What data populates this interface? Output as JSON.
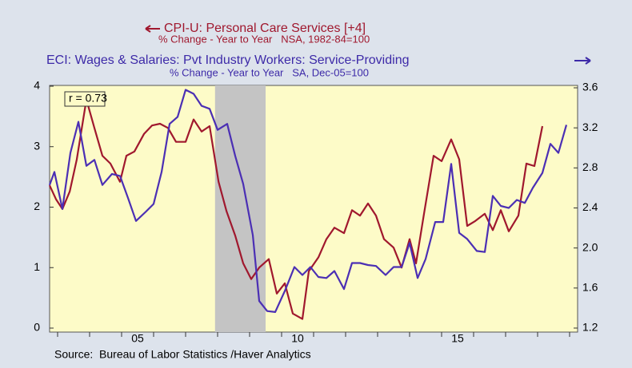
{
  "chart_data": {
    "type": "line",
    "annotation": "r = 0.73",
    "source": "Source:  Bureau of Labor Statistics /Haver Analytics",
    "xlim": [
      2002.75,
      2019.25
    ],
    "xticks": [
      {
        "value": 2005.5,
        "label": "05"
      },
      {
        "value": 2010.5,
        "label": "10"
      },
      {
        "value": 2015.5,
        "label": "15"
      }
    ],
    "xminor_ticks": [
      2003,
      2004,
      2005,
      2006,
      2007,
      2008,
      2009,
      2010,
      2011,
      2012,
      2013,
      2014,
      2015,
      2016,
      2017,
      2018,
      2019
    ],
    "recession": [
      2007.92,
      2009.5
    ],
    "ylim": [
      -0.066,
      4.013
    ],
    "yticks": [
      0,
      1,
      2,
      3,
      4
    ],
    "y2lim": [
      1.16,
      3.624
    ],
    "y2ticks": [
      1.2,
      1.6,
      {
        "value": 2,
        "label": "2.0"
      },
      2.4,
      2.8,
      3.2,
      3.6
    ],
    "series": [
      {
        "name": "CPI-U: Personal Care Services [+4]",
        "subtitle": "% Change - Year to Year   NSA, 1982-84=100",
        "color": "#a0182e",
        "axis": "y",
        "x": [
          2002.75,
          2002.95,
          2003.15,
          2003.38,
          2003.6,
          2003.9,
          2004.15,
          2004.4,
          2004.65,
          2004.95,
          2005.15,
          2005.4,
          2005.7,
          2005.95,
          2006.2,
          2006.45,
          2006.7,
          2007.0,
          2007.25,
          2007.5,
          2007.75,
          2008.03,
          2008.28,
          2008.55,
          2008.8,
          2009.05,
          2009.3,
          2009.6,
          2009.85,
          2010.1,
          2010.35,
          2010.65,
          2010.85,
          2011.15,
          2011.4,
          2011.65,
          2011.95,
          2012.2,
          2012.45,
          2012.7,
          2012.95,
          2013.2,
          2013.5,
          2013.75,
          2014.0,
          2014.2,
          2014.45,
          2014.75,
          2015.0,
          2015.3,
          2015.55,
          2015.8,
          2016.05,
          2016.35,
          2016.6,
          2016.85,
          2017.1,
          2017.4,
          2017.65,
          2017.9,
          2018.15
        ],
        "values": [
          2.36,
          2.13,
          1.97,
          2.26,
          2.79,
          3.78,
          3.31,
          2.85,
          2.72,
          2.42,
          2.85,
          2.92,
          3.21,
          3.35,
          3.38,
          3.31,
          3.08,
          3.08,
          3.45,
          3.25,
          3.34,
          2.42,
          1.93,
          1.53,
          1.07,
          0.81,
          1.0,
          1.14,
          0.57,
          0.74,
          0.24,
          0.15,
          0.94,
          1.17,
          1.47,
          1.66,
          1.57,
          1.95,
          1.86,
          2.06,
          1.86,
          1.47,
          1.33,
          1.0,
          1.47,
          1.07,
          1.89,
          2.85,
          2.76,
          3.12,
          2.79,
          1.69,
          1.77,
          1.89,
          1.62,
          1.95,
          1.6,
          1.86,
          2.72,
          2.68,
          3.34
        ]
      },
      {
        "name": "ECI: Wages & Salaries: Pvt Industry Workers: Service-Providing",
        "subtitle": "% Change - Year to Year   SA, Dec-05=100",
        "color": "#4b2fb4",
        "axis": "y2",
        "x": [
          2002.75,
          2002.9,
          2003.15,
          2003.4,
          2003.65,
          2003.9,
          2004.15,
          2004.4,
          2004.7,
          2004.95,
          2005.2,
          2005.45,
          2005.75,
          2006.0,
          2006.25,
          2006.5,
          2006.75,
          2007.0,
          2007.25,
          2007.5,
          2007.75,
          2008.0,
          2008.3,
          2008.55,
          2008.8,
          2009.1,
          2009.3,
          2009.55,
          2009.8,
          2010.1,
          2010.4,
          2010.65,
          2010.9,
          2011.15,
          2011.4,
          2011.65,
          2011.95,
          2012.2,
          2012.45,
          2012.7,
          2012.95,
          2013.25,
          2013.5,
          2013.75,
          2014.0,
          2014.25,
          2014.5,
          2014.8,
          2015.05,
          2015.3,
          2015.55,
          2015.8,
          2016.1,
          2016.35,
          2016.6,
          2016.85,
          2017.1,
          2017.35,
          2017.6,
          2017.85,
          2018.15,
          2018.4,
          2018.65,
          2018.9
        ],
        "values": [
          2.63,
          2.76,
          2.39,
          2.95,
          3.26,
          2.82,
          2.88,
          2.63,
          2.74,
          2.72,
          2.5,
          2.27,
          2.36,
          2.44,
          2.76,
          3.24,
          3.31,
          3.58,
          3.54,
          3.42,
          3.39,
          3.18,
          3.24,
          2.92,
          2.64,
          2.13,
          1.47,
          1.37,
          1.36,
          1.57,
          1.81,
          1.73,
          1.81,
          1.71,
          1.7,
          1.77,
          1.59,
          1.85,
          1.85,
          1.83,
          1.82,
          1.73,
          1.81,
          1.81,
          2.05,
          1.7,
          1.89,
          2.26,
          2.26,
          2.84,
          2.15,
          2.09,
          1.97,
          1.96,
          2.52,
          2.42,
          2.4,
          2.48,
          2.45,
          2.6,
          2.75,
          3.04,
          2.95,
          3.23
        ]
      }
    ]
  }
}
